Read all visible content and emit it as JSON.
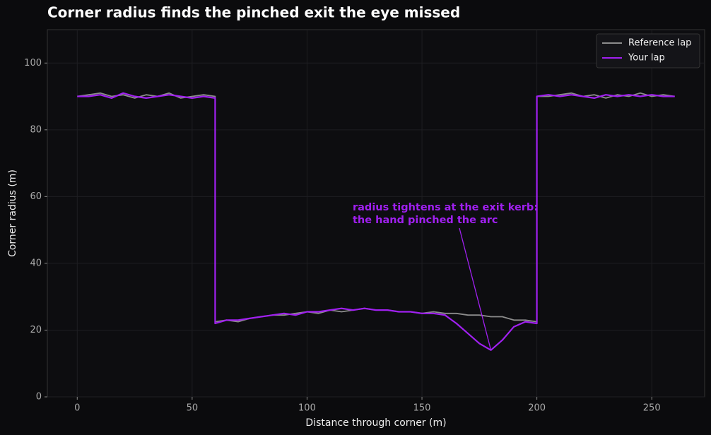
{
  "chart_data": {
    "type": "line",
    "title": "Corner radius finds the pinched exit the eye missed",
    "x_label": "Distance through corner (m)",
    "y_label": "Corner radius (m)",
    "x": [
      0,
      5,
      10,
      15,
      20,
      25,
      30,
      35,
      40,
      45,
      50,
      55,
      60,
      60,
      65,
      70,
      75,
      80,
      85,
      90,
      95,
      100,
      105,
      110,
      115,
      120,
      125,
      130,
      135,
      140,
      145,
      150,
      155,
      160,
      165,
      170,
      175,
      180,
      185,
      190,
      195,
      200,
      200,
      205,
      210,
      215,
      220,
      225,
      230,
      235,
      240,
      245,
      250,
      255,
      260
    ],
    "series": [
      {
        "name": "Reference lap",
        "color": "#8c8c8c",
        "values": [
          90,
          90.5,
          91,
          90,
          90.5,
          89.5,
          90.5,
          90,
          91,
          89.5,
          90,
          90.5,
          90,
          22.5,
          23,
          22.5,
          23.5,
          24,
          24.5,
          24.5,
          25,
          25.5,
          25,
          26,
          25.5,
          26,
          26.5,
          26,
          26,
          25.5,
          25.5,
          25,
          25.5,
          25,
          25,
          24.5,
          24.5,
          24,
          24,
          23,
          23,
          22.5,
          90,
          90,
          90.5,
          91,
          90,
          90.5,
          89.5,
          90.5,
          90,
          91,
          90,
          90.5,
          90
        ]
      },
      {
        "name": "Your lap",
        "color": "#a020f0",
        "values": [
          90,
          90,
          90.5,
          89.5,
          91,
          90,
          89.5,
          90,
          90.5,
          90,
          89.5,
          90,
          89.5,
          22,
          23,
          23,
          23.5,
          24,
          24.5,
          25,
          24.5,
          25.5,
          25.5,
          26,
          26.5,
          26,
          26.5,
          26,
          26,
          25.5,
          25.5,
          25,
          25,
          24.5,
          22,
          19,
          16,
          14,
          17,
          21,
          22.5,
          22,
          90,
          90.5,
          90,
          90.5,
          90,
          89.5,
          90.5,
          90,
          90.5,
          90,
          90.5,
          90,
          90
        ]
      }
    ],
    "annotation": {
      "lines": [
        "radius tightens at the exit kerb:",
        "the hand pinched the arc"
      ],
      "point": {
        "x": 180,
        "y": 14
      }
    },
    "xlim": [
      -13,
      273
    ],
    "ylim": [
      0,
      110
    ],
    "xticks": [
      0,
      50,
      100,
      150,
      200,
      250
    ],
    "yticks": [
      0,
      20,
      40,
      60,
      80,
      100
    ],
    "grid": true,
    "legend": "upper right"
  }
}
